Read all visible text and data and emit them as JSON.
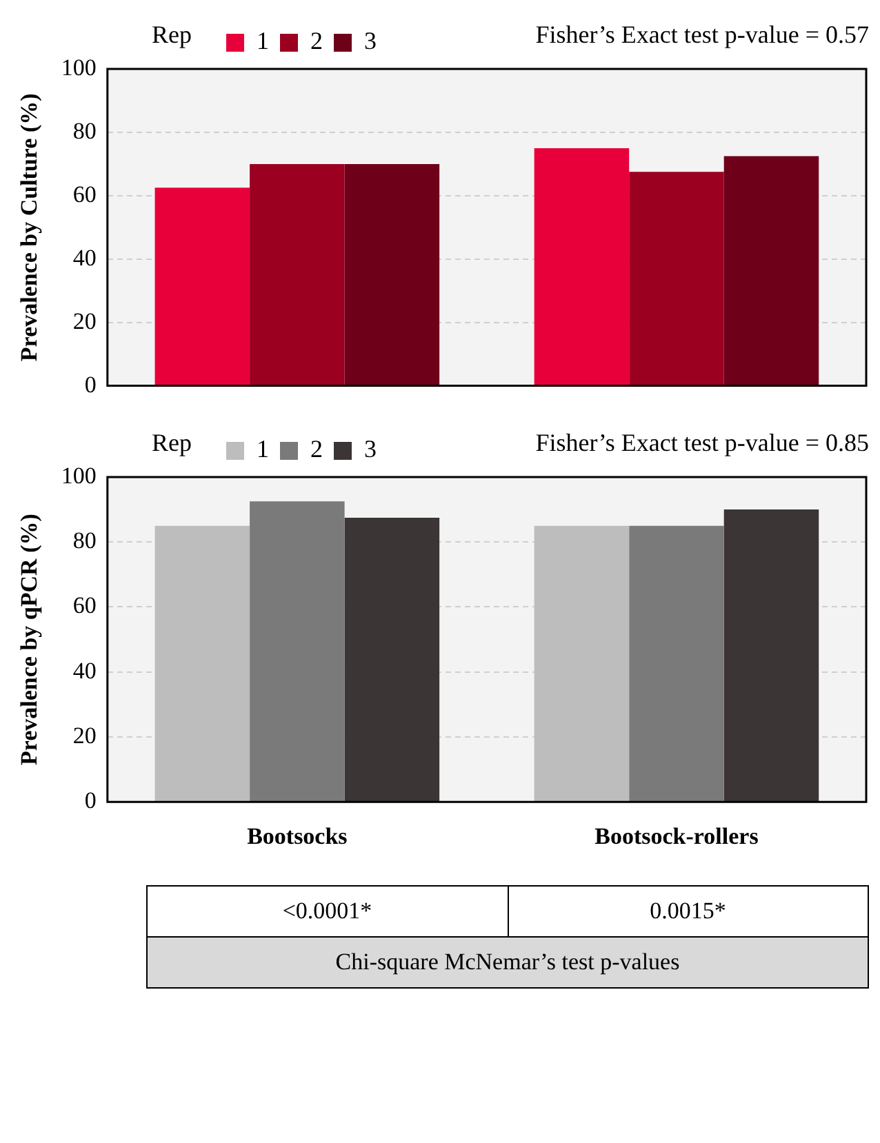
{
  "chart_data": [
    {
      "type": "bar",
      "ylabel": "Prevalence by Culture (%)",
      "legend_title": "Rep",
      "categories": [
        null,
        null
      ],
      "series": [
        {
          "name": "1",
          "color": "#e8003a",
          "values": [
            62.5,
            75
          ]
        },
        {
          "name": "2",
          "color": "#9c0021",
          "values": [
            70,
            67.5
          ]
        },
        {
          "name": "3",
          "color": "#6e0019",
          "values": [
            70,
            72.5
          ]
        }
      ],
      "ylim": [
        0,
        100
      ],
      "yticks": [
        0,
        20,
        40,
        60,
        80,
        100
      ],
      "grid": "y",
      "legend": "top left",
      "tick_labels": "y",
      "annotations": [
        "Fisher’s Exact test p-value = 0.57"
      ]
    },
    {
      "type": "bar",
      "ylabel": "Prevalence by qPCR (%)",
      "legend_title": "Rep",
      "categories": [
        "Bootsocks",
        "Bootsock-rollers"
      ],
      "series": [
        {
          "name": "1",
          "color": "#bdbdbd",
          "values": [
            85,
            85
          ]
        },
        {
          "name": "2",
          "color": "#7a7a7a",
          "values": [
            92.5,
            85
          ]
        },
        {
          "name": "3",
          "color": "#3b3536",
          "values": [
            87.5,
            90
          ]
        }
      ],
      "ylim": [
        0,
        100
      ],
      "yticks": [
        0,
        20,
        40,
        60,
        80,
        100
      ],
      "grid": "y",
      "legend": "top left",
      "annotations": [
        "Fisher’s Exact test p-value = 0.85",
        "<0.0001*",
        "0.0015*",
        "Chi-square McNemar’s test p-values"
      ]
    }
  ]
}
